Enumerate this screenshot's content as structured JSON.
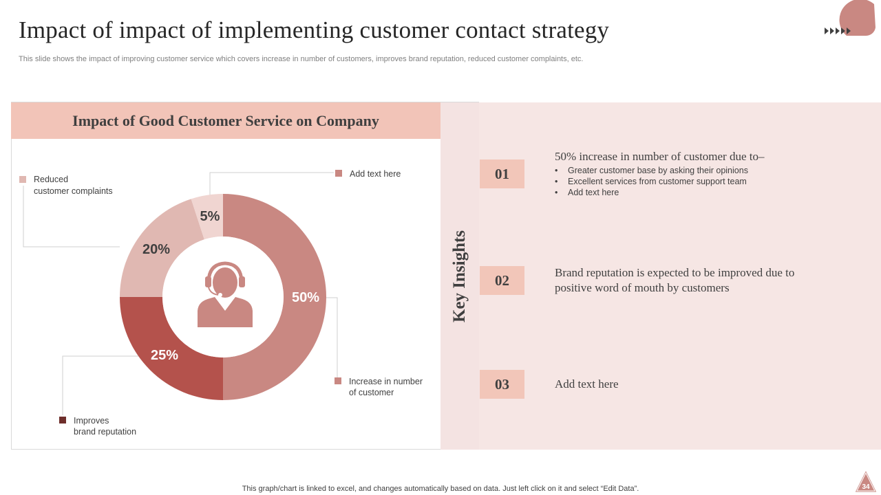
{
  "slide": {
    "title": "Impact of  impact of  implementing customer contact strategy",
    "subtitle": "This slide shows the impact of improving customer service which covers increase in number of customers, improves brand reputation, reduced customer complaints, etc.",
    "footer": "This graph/chart is linked to excel,  and changes automatically based on data. Just left click on it and select “Edit Data”.",
    "page_number": "34"
  },
  "chart_data": {
    "type": "pie",
    "title": "Impact of  Good Customer Service on Company",
    "slices": [
      {
        "label": "Increase in number of customer",
        "value": 50,
        "display": "50%",
        "color": "#c98882"
      },
      {
        "label": "Improves brand reputation",
        "value": 25,
        "display": "25%",
        "color": "#b4524c"
      },
      {
        "label": "Reduced customer complaints",
        "value": 20,
        "display": "20%",
        "color": "#e0b8b2"
      },
      {
        "label": "Add text here",
        "value": 5,
        "display": "5%",
        "color": "#f0d5d1"
      }
    ],
    "legend": {
      "reduced_line1": "Reduced",
      "reduced_line2": "customer complaints",
      "add_text": "Add text here",
      "increase_line1": "Increase in number",
      "increase_line2": "of customer",
      "improves_line1": "Improves",
      "improves_line2": "brand reputation"
    },
    "center_icon": "customer-support-agent-icon"
  },
  "insights": {
    "label": "Key Insights",
    "items": [
      {
        "number": "01",
        "heading": "50% increase in number of  customer due to–",
        "bullets": [
          "Greater customer base by asking their opinions",
          "Excellent services from customer support team",
          "Add text here"
        ]
      },
      {
        "number": "02",
        "heading_line1": "Brand reputation is expected to be improved due to",
        "heading_line2": "positive word of  mouth by customers"
      },
      {
        "number": "03",
        "heading": "Add text here"
      }
    ]
  },
  "colors": {
    "accent": "#c98882",
    "dark_accent": "#b4524c",
    "header_bg": "#f2c4b8",
    "panel_bg": "#f6e6e4"
  }
}
